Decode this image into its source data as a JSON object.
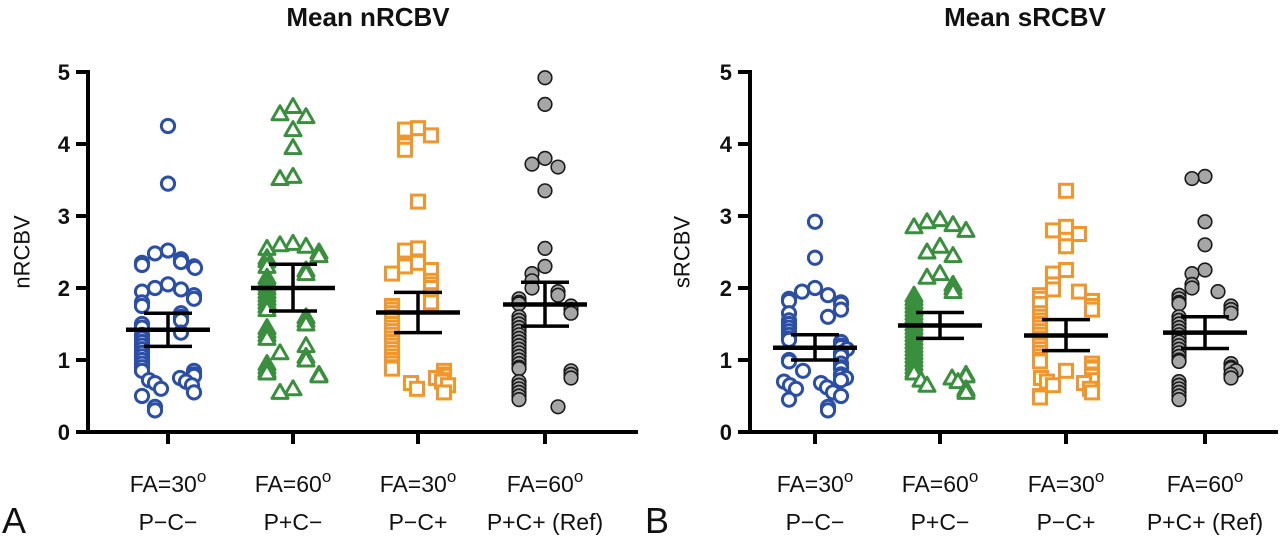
{
  "chart_data": [
    {
      "type": "scatter",
      "panel_label": "A",
      "title": "Mean nRCBV",
      "ylabel": "nRCBV",
      "ylim": [
        0,
        5
      ],
      "yticks": [
        "0",
        "1",
        "2",
        "3",
        "4",
        "5"
      ],
      "categories": [
        {
          "line1": "FA=30",
          "sup": "o",
          "line2": "P−C−"
        },
        {
          "line1": "FA=60",
          "sup": "o",
          "line2": "P+C−"
        },
        {
          "line1": "FA=30",
          "sup": "o",
          "line2": "P−C+"
        },
        {
          "line1": "FA=60",
          "sup": "o",
          "line2": "P+C+ (Ref)"
        }
      ],
      "series": [
        {
          "marker": "circle-open",
          "color": "#2b4fa6",
          "mean": 1.42,
          "ci": [
            1.19,
            1.65
          ],
          "values": [
            4.25,
            3.45,
            2.52,
            2.48,
            2.4,
            2.36,
            2.35,
            2.32,
            2.3,
            2.28,
            2.05,
            2.0,
            1.98,
            1.95,
            1.9,
            1.85,
            1.8,
            1.75,
            1.65,
            1.6,
            1.55,
            1.5,
            1.45,
            1.38,
            1.35,
            1.3,
            1.25,
            1.2,
            1.15,
            1.1,
            1.05,
            1.0,
            0.95,
            0.9,
            0.85,
            0.85,
            0.8,
            0.78,
            0.75,
            0.72,
            0.7,
            0.68,
            0.65,
            0.6,
            0.55,
            0.5,
            0.35,
            0.3
          ]
        },
        {
          "marker": "triangle-open",
          "color": "#3a8f3e",
          "mean": 2.0,
          "ci": [
            1.68,
            2.33
          ],
          "values": [
            4.52,
            4.42,
            4.38,
            4.2,
            3.95,
            3.55,
            3.52,
            2.62,
            2.6,
            2.58,
            2.55,
            2.5,
            2.45,
            2.42,
            2.38,
            2.3,
            2.25,
            2.2,
            2.15,
            2.1,
            2.05,
            2.0,
            1.95,
            1.9,
            1.85,
            1.8,
            1.75,
            1.7,
            1.6,
            1.55,
            1.5,
            1.45,
            1.4,
            1.35,
            1.3,
            1.2,
            1.1,
            1.05,
            1.0,
            0.95,
            0.9,
            0.85,
            0.82,
            0.8,
            0.78,
            0.6,
            0.55
          ]
        },
        {
          "marker": "square-open",
          "color": "#f0962b",
          "mean": 1.66,
          "ci": [
            1.38,
            1.94
          ],
          "values": [
            4.22,
            4.2,
            4.12,
            3.98,
            3.92,
            3.2,
            2.55,
            2.52,
            2.35,
            2.3,
            2.25,
            2.2,
            2.1,
            2.05,
            2.0,
            1.9,
            1.85,
            1.8,
            1.75,
            1.7,
            1.65,
            1.6,
            1.55,
            1.5,
            1.45,
            1.4,
            1.35,
            1.3,
            1.25,
            1.2,
            1.15,
            1.1,
            1.05,
            1.0,
            0.95,
            0.9,
            0.88,
            0.85,
            0.8,
            0.78,
            0.75,
            0.72,
            0.7,
            0.68,
            0.65,
            0.6,
            0.55
          ]
        },
        {
          "marker": "circle-filled",
          "color": "#a6a6a6",
          "mean": 1.77,
          "ci": [
            1.47,
            2.08
          ],
          "values": [
            4.92,
            4.55,
            3.8,
            3.72,
            3.68,
            3.35,
            2.55,
            2.3,
            2.2,
            2.1,
            2.0,
            1.95,
            1.9,
            1.85,
            1.8,
            1.78,
            1.75,
            1.7,
            1.65,
            1.6,
            1.55,
            1.5,
            1.45,
            1.4,
            1.35,
            1.3,
            1.25,
            1.2,
            1.15,
            1.1,
            1.05,
            1.0,
            0.95,
            0.9,
            0.88,
            0.85,
            0.8,
            0.75,
            0.7,
            0.65,
            0.6,
            0.55,
            0.5,
            0.45,
            0.35
          ]
        }
      ]
    },
    {
      "type": "scatter",
      "panel_label": "B",
      "title": "Mean sRCBV",
      "ylabel": "sRCBV",
      "ylim": [
        0,
        5
      ],
      "yticks": [
        "0",
        "1",
        "2",
        "3",
        "4",
        "5"
      ],
      "categories": [
        {
          "line1": "FA=30",
          "sup": "o",
          "line2": "P−C−"
        },
        {
          "line1": "FA=60",
          "sup": "o",
          "line2": "P+C−"
        },
        {
          "line1": "FA=30",
          "sup": "o",
          "line2": "P−C+"
        },
        {
          "line1": "FA=60",
          "sup": "o",
          "line2": "P+C+ (Ref)"
        }
      ],
      "series": [
        {
          "marker": "circle-open",
          "color": "#2b4fa6",
          "mean": 1.17,
          "ci": [
            1.0,
            1.35
          ],
          "values": [
            2.92,
            2.42,
            2.0,
            1.95,
            1.9,
            1.85,
            1.82,
            1.8,
            1.78,
            1.7,
            1.65,
            1.6,
            1.55,
            1.5,
            1.45,
            1.4,
            1.35,
            1.3,
            1.28,
            1.25,
            1.2,
            1.18,
            1.15,
            1.1,
            1.05,
            1.0,
            0.98,
            0.95,
            0.9,
            0.88,
            0.85,
            0.8,
            0.78,
            0.75,
            0.72,
            0.7,
            0.68,
            0.65,
            0.62,
            0.6,
            0.55,
            0.5,
            0.45,
            0.35,
            0.3
          ]
        },
        {
          "marker": "triangle-open",
          "color": "#3a8f3e",
          "mean": 1.48,
          "ci": [
            1.3,
            1.66
          ],
          "values": [
            2.95,
            2.92,
            2.88,
            2.85,
            2.8,
            2.58,
            2.5,
            2.45,
            2.2,
            2.15,
            2.05,
            2.0,
            1.95,
            1.9,
            1.85,
            1.8,
            1.75,
            1.7,
            1.65,
            1.6,
            1.55,
            1.5,
            1.45,
            1.4,
            1.35,
            1.3,
            1.25,
            1.2,
            1.15,
            1.1,
            1.05,
            1.0,
            0.95,
            0.9,
            0.85,
            0.82,
            0.8,
            0.78,
            0.75,
            0.72,
            0.7,
            0.65,
            0.6,
            0.58,
            0.55
          ]
        },
        {
          "marker": "square-open",
          "color": "#f0962b",
          "mean": 1.34,
          "ci": [
            1.13,
            1.56
          ],
          "values": [
            3.35,
            2.85,
            2.8,
            2.75,
            2.58,
            2.25,
            2.2,
            2.05,
            1.98,
            1.95,
            1.9,
            1.85,
            1.82,
            1.78,
            1.75,
            1.7,
            1.65,
            1.6,
            1.55,
            1.5,
            1.45,
            1.4,
            1.35,
            1.3,
            1.25,
            1.2,
            1.15,
            1.1,
            1.05,
            1.0,
            0.98,
            0.95,
            0.9,
            0.88,
            0.85,
            0.8,
            0.78,
            0.75,
            0.72,
            0.7,
            0.68,
            0.65,
            0.6,
            0.55,
            0.5,
            0.48
          ]
        },
        {
          "marker": "circle-filled",
          "color": "#a6a6a6",
          "mean": 1.38,
          "ci": [
            1.16,
            1.6
          ],
          "values": [
            3.55,
            3.52,
            2.92,
            2.6,
            2.25,
            2.2,
            2.05,
            2.0,
            1.95,
            1.9,
            1.85,
            1.8,
            1.78,
            1.75,
            1.7,
            1.65,
            1.6,
            1.55,
            1.5,
            1.45,
            1.4,
            1.35,
            1.3,
            1.25,
            1.2,
            1.15,
            1.1,
            1.05,
            1.0,
            0.98,
            0.95,
            0.9,
            0.88,
            0.85,
            0.8,
            0.75,
            0.7,
            0.65,
            0.6,
            0.55,
            0.5,
            0.45
          ]
        }
      ]
    }
  ]
}
